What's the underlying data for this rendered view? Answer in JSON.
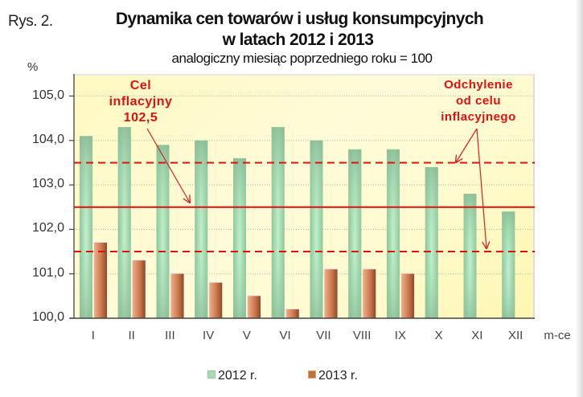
{
  "header": {
    "figure_label": "Rys. 2.",
    "title_line1": "Dynamika cen towarów i usług konsumpcyjnych",
    "title_line2": "w latach 2012 i 2013",
    "subtitle": "analogiczny miesiąc poprzedniego roku = 100",
    "y_unit": "%"
  },
  "x_axis_unit": "m-ce",
  "annotations": {
    "target_line1": "Cel",
    "target_line2": "inflacyjny",
    "target_line3": "102,5",
    "deviation_line1": "Odchylenie",
    "deviation_line2": "od celu",
    "deviation_line3": "inflacyjnego"
  },
  "legend": {
    "s2012": "2012 r.",
    "s2013": "2013 r."
  },
  "colors": {
    "series_2012": "#8fc79f",
    "series_2013": "#c0703d",
    "target_line": "#e01010",
    "plot_bg": "#fffbcf",
    "annotation_text": "#e01010"
  },
  "y_ticks": [
    "105,0",
    "104,0",
    "103,0",
    "102,0",
    "101,0",
    "100,0"
  ],
  "chart_data": {
    "type": "bar",
    "title": "Dynamika cen towarów i usług konsumpcyjnych w latach 2012 i 2013",
    "subtitle": "analogiczny miesiąc poprzedniego roku = 100",
    "xlabel": "m-ce",
    "ylabel": "%",
    "ylim": [
      100,
      105.5
    ],
    "grid": true,
    "legend_position": "bottom",
    "categories": [
      "I",
      "II",
      "III",
      "IV",
      "V",
      "VI",
      "VII",
      "VIII",
      "IX",
      "X",
      "XI",
      "XII"
    ],
    "series": [
      {
        "name": "2012 r.",
        "values": [
          104.1,
          104.3,
          103.9,
          104.0,
          103.6,
          104.3,
          104.0,
          103.8,
          103.8,
          103.4,
          102.8,
          102.4
        ]
      },
      {
        "name": "2013 r.",
        "values": [
          101.7,
          101.3,
          101.0,
          100.8,
          100.5,
          100.2,
          101.1,
          101.1,
          101.0,
          null,
          null,
          null
        ]
      }
    ],
    "reference_lines": [
      {
        "label": "Cel inflacyjny 102,5",
        "value": 102.5,
        "style": "solid"
      },
      {
        "label": "Odchylenie od celu inflacyjnego (górne)",
        "value": 103.5,
        "style": "dashed"
      },
      {
        "label": "Odchylenie od celu inflacyjnego (dolne)",
        "value": 101.5,
        "style": "dashed"
      }
    ],
    "annotations": [
      "Cel inflacyjny 102,5",
      "Odchylenie od celu inflacyjnego"
    ]
  }
}
